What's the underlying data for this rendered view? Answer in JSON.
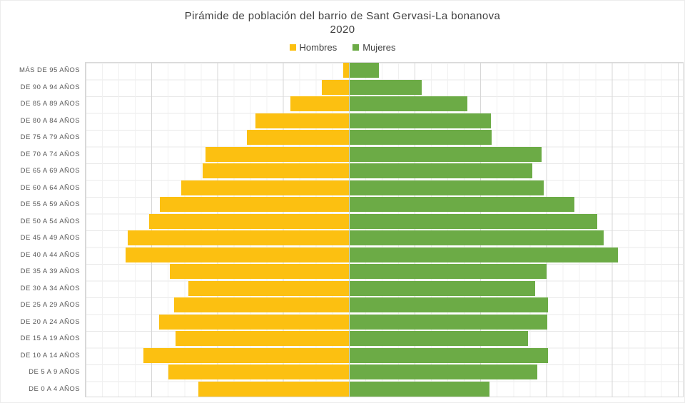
{
  "title": "Pirámide de población del barrio de Sant Gervasi-La bonanova",
  "subtitle": "2020",
  "legend": [
    {
      "label": "Hombres",
      "color": "#FCC011"
    },
    {
      "label": "Mujeres",
      "color": "#6CAB46"
    }
  ],
  "chart_data": {
    "type": "bar",
    "variant": "population-pyramid",
    "orientation": "horizontal",
    "title": "Pirámide de población del barrio de Sant Gervasi-La bonanova",
    "subtitle": "2020",
    "xlabel": "",
    "ylabel": "",
    "legend_position": "top",
    "grid": true,
    "axis": {
      "x_min": -800,
      "x_max": 1000,
      "major_gridline_interval": 200,
      "minor_gridline_interval": 50,
      "x_tick_labels_visible": false,
      "values_estimated_from_gridlines": true
    },
    "categories": [
      "MÁS DE 95 AÑOS",
      "DE 90 A 94 AÑOS",
      "DE 85 A 89 AÑOS",
      "DE 80 A 84 AÑOS",
      "DE 75 A 79 AÑOS",
      "DE 70 A 74 AÑOS",
      "DE 65 A 69 AÑOS",
      "DE 60 A 64 AÑOS",
      "DE 55 A 59 AÑOS",
      "DE 50 A 54 AÑOS",
      "DE 45 A 49 AÑOS",
      "DE 40 A 44 AÑOS",
      "DE 35 A 39 AÑOS",
      "DE 30 A 34 AÑOS",
      "DE 25 A 29 AÑOS",
      "DE 20 A 24 AÑOS",
      "DE 15 A 19 AÑOS",
      "DE 10 A 14 AÑOS",
      "DE 5 A 9 AÑOS",
      "DE 0 A 4 AÑOS"
    ],
    "series": [
      {
        "name": "Hombres",
        "side": "left",
        "color": "#FCC011",
        "values": [
          17,
          82,
          178,
          284,
          310,
          436,
          445,
          510,
          575,
          607,
          672,
          679,
          544,
          488,
          531,
          577,
          527,
          625,
          549,
          458
        ]
      },
      {
        "name": "Mujeres",
        "side": "right",
        "color": "#6CAB46",
        "values": [
          89,
          219,
          358,
          429,
          432,
          583,
          555,
          590,
          683,
          753,
          772,
          815,
          599,
          564,
          603,
          601,
          542,
          603,
          570,
          425
        ]
      }
    ]
  }
}
